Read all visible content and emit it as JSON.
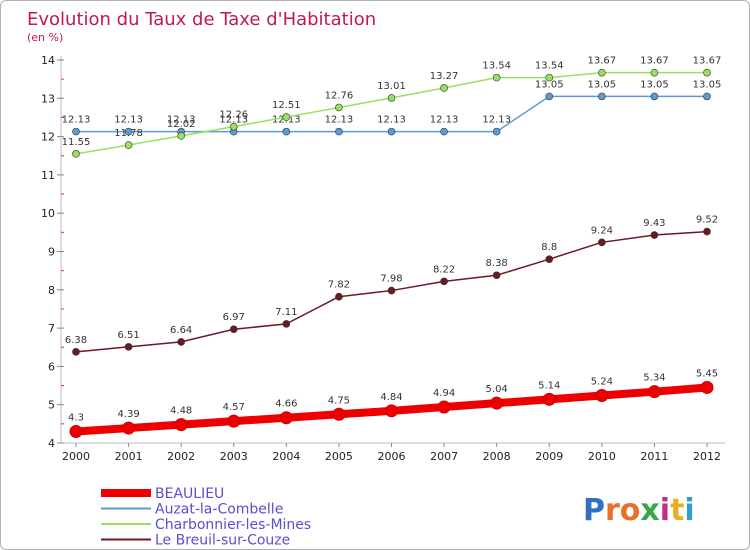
{
  "chart_data": {
    "type": "line",
    "title": "Evolution du Taux de Taxe d'Habitation",
    "subtitle": "(en %)",
    "xlabel": "",
    "ylabel": "",
    "categories": [
      "2000",
      "2001",
      "2002",
      "2003",
      "2004",
      "2005",
      "2006",
      "2007",
      "2008",
      "2009",
      "2010",
      "2011",
      "2012"
    ],
    "ylim": [
      4,
      14
    ],
    "yticks": [
      4,
      5,
      6,
      7,
      8,
      9,
      10,
      11,
      12,
      13,
      14
    ],
    "grid": false,
    "legend_position": "bottom-left",
    "series": [
      {
        "name": "BEAULIEU",
        "color": "#ee0000",
        "values": [
          4.3,
          4.39,
          4.48,
          4.57,
          4.66,
          4.75,
          4.84,
          4.94,
          5.04,
          5.14,
          5.24,
          5.34,
          5.45
        ],
        "labels": [
          "4.3",
          "4.39",
          "4.48",
          "4.57",
          "4.66",
          "4.75",
          "4.84",
          "4.94",
          "5.04",
          "5.14",
          "5.24",
          "5.34",
          "5.45"
        ]
      },
      {
        "name": "Auzat-la-Combelle",
        "color": "#5b9bd5",
        "values": [
          12.13,
          12.13,
          12.13,
          12.13,
          12.13,
          12.13,
          12.13,
          12.13,
          12.13,
          13.05,
          13.05,
          13.05,
          13.05
        ],
        "labels": [
          "12.13",
          "12.13",
          "12.13",
          "12.13",
          "12.13",
          "12.13",
          "12.13",
          "12.13",
          "12.13",
          "13.05",
          "13.05",
          "13.05",
          "13.05"
        ]
      },
      {
        "name": "Charbonnier-les-Mines",
        "color": "#99e060",
        "values": [
          11.55,
          11.78,
          12.02,
          12.26,
          12.51,
          12.76,
          13.01,
          13.27,
          13.54,
          13.54,
          13.67,
          13.67,
          13.67
        ],
        "labels": [
          "11.55",
          "11.78",
          "12.02",
          "12.26",
          "12.51",
          "12.76",
          "13.01",
          "13.27",
          "13.54",
          "13.54",
          "13.67",
          "13.67",
          "13.67"
        ]
      },
      {
        "name": "Le Breuil-sur-Couze",
        "color": "#6b1a22",
        "values": [
          6.38,
          6.51,
          6.64,
          6.97,
          7.11,
          7.82,
          7.98,
          8.22,
          8.38,
          8.8,
          9.24,
          9.43,
          9.52
        ],
        "labels": [
          "6.38",
          "6.51",
          "6.64",
          "6.97",
          "7.11",
          "7.82",
          "7.98",
          "8.22",
          "8.38",
          "8.8",
          "9.24",
          "9.43",
          "9.52"
        ]
      }
    ]
  },
  "branding": {
    "logo_letters": [
      "P",
      "r",
      "o",
      "x",
      "i",
      "t",
      "i"
    ],
    "logo_colors": [
      "#2f6fc4",
      "#e8702a",
      "#e8702a",
      "#3aa64a",
      "#c03080",
      "#e8b020",
      "#2f9fd0"
    ]
  }
}
